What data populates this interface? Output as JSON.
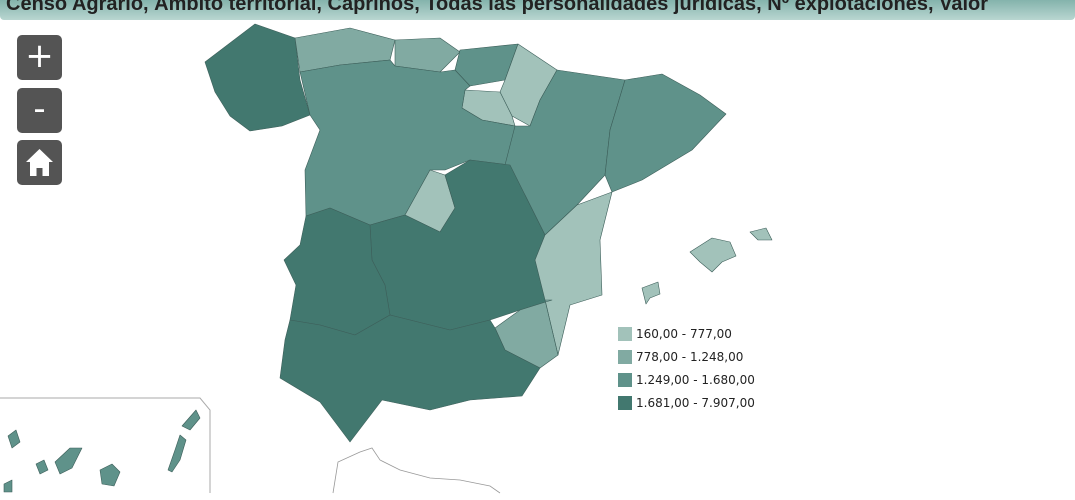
{
  "header": {
    "title": "Censo Agrario, Ámbito territorial, Caprinos, Todas las personalidades jurídicas, Nº explotaciones, Valor"
  },
  "controls": {
    "zoom_in": "+",
    "zoom_out": "-"
  },
  "legend": {
    "items": [
      {
        "label": "160,00 - 777,00",
        "color": "#a2c2ba"
      },
      {
        "label": "778,00 - 1.248,00",
        "color": "#81aaa2"
      },
      {
        "label": "1.249,00 - 1.680,00",
        "color": "#5f928a"
      },
      {
        "label": "1.681,00 - 7.907,00",
        "color": "#42786f"
      }
    ]
  }
}
